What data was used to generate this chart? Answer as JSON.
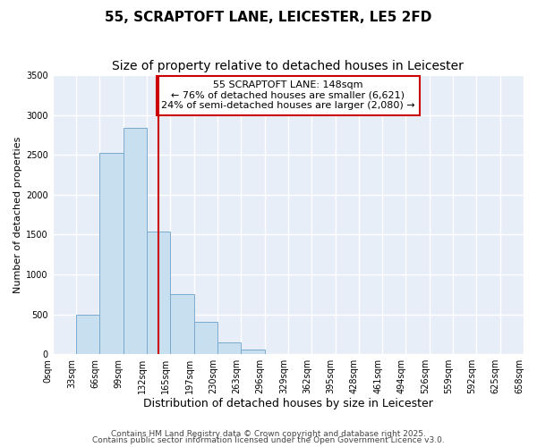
{
  "title": "55, SCRAPTOFT LANE, LEICESTER, LE5 2FD",
  "subtitle": "Size of property relative to detached houses in Leicester",
  "xlabel": "Distribution of detached houses by size in Leicester",
  "ylabel": "Number of detached properties",
  "bar_color": "#c8dff0",
  "bar_edge_color": "#7aaacf",
  "background_color": "#e8eef8",
  "grid_color": "white",
  "bin_labels": [
    "0sqm",
    "33sqm",
    "66sqm",
    "99sqm",
    "132sqm",
    "165sqm",
    "197sqm",
    "230sqm",
    "263sqm",
    "296sqm",
    "329sqm",
    "362sqm",
    "395sqm",
    "428sqm",
    "461sqm",
    "494sqm",
    "526sqm",
    "559sqm",
    "592sqm",
    "625sqm",
    "658sqm"
  ],
  "bar_values": [
    0,
    490,
    2520,
    2840,
    1540,
    750,
    400,
    150,
    60,
    0,
    0,
    0,
    0,
    0,
    0,
    0,
    0,
    0,
    0,
    0
  ],
  "ylim": [
    0,
    3500
  ],
  "yticks": [
    0,
    500,
    1000,
    1500,
    2000,
    2500,
    3000,
    3500
  ],
  "property_line_x": 4.48,
  "annotation_box_text": "55 SCRAPTOFT LANE: 148sqm\n← 76% of detached houses are smaller (6,621)\n24% of semi-detached houses are larger (2,080) →",
  "annotation_box_color": "#cc0000",
  "footer_line1": "Contains HM Land Registry data © Crown copyright and database right 2025.",
  "footer_line2": "Contains public sector information licensed under the Open Government Licence v3.0.",
  "title_fontsize": 11,
  "subtitle_fontsize": 10,
  "xlabel_fontsize": 9,
  "ylabel_fontsize": 8,
  "tick_fontsize": 7,
  "annotation_fontsize": 8,
  "footer_fontsize": 6.5
}
